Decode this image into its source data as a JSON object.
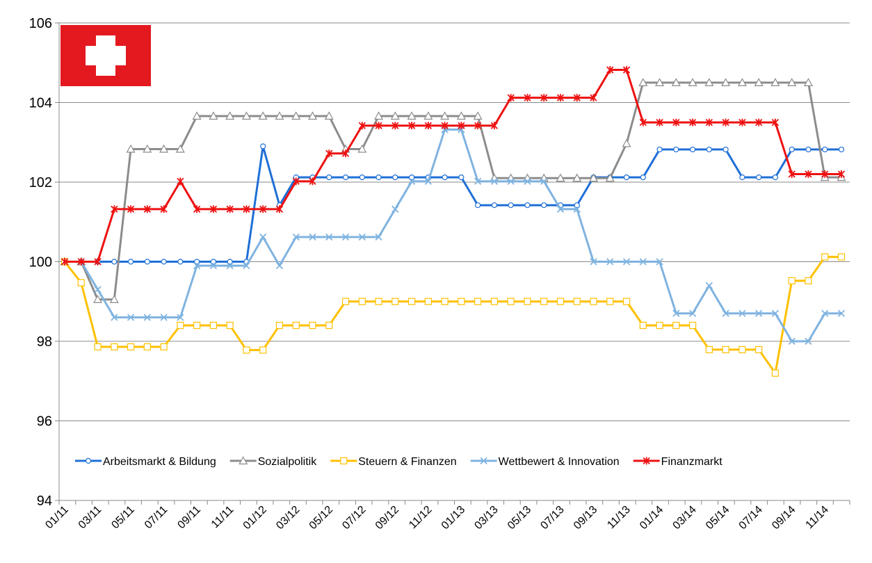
{
  "chart_data": {
    "type": "line",
    "categories": [
      "01/11",
      null,
      "03/11",
      null,
      "05/11",
      null,
      "07/11",
      null,
      "09/11",
      null,
      "11/11",
      null,
      "01/12",
      null,
      "03/12",
      null,
      "05/12",
      null,
      "07/12",
      null,
      "09/12",
      null,
      "11/12",
      null,
      "01/13",
      null,
      "03/13",
      null,
      "05/13",
      null,
      "07/13",
      null,
      "09/13",
      null,
      "11/13",
      null,
      "01/14",
      null,
      "03/14",
      null,
      "05/14",
      null,
      "07/14",
      null,
      "09/14",
      null,
      "11/14",
      null
    ],
    "series": [
      {
        "name": "Arbeitsmarkt & Bildung",
        "color": "#1f6fd6",
        "marker": "circle",
        "values": [
          100,
          100,
          100,
          100,
          100,
          100,
          100,
          100,
          100,
          100,
          100,
          100,
          102.9,
          101.42,
          102.12,
          102.12,
          102.12,
          102.12,
          102.12,
          102.12,
          102.12,
          102.12,
          102.12,
          102.12,
          102.12,
          101.42,
          101.42,
          101.42,
          101.42,
          101.42,
          101.42,
          101.42,
          102.12,
          102.12,
          102.12,
          102.12,
          102.82,
          102.82,
          102.82,
          102.82,
          102.82,
          102.12,
          102.12,
          102.12,
          102.82,
          102.82,
          102.82,
          102.82
        ]
      },
      {
        "name": "Sozialpolitik",
        "color": "#8c8c8c",
        "marker": "triangle",
        "values": [
          100,
          100,
          99.05,
          99.05,
          102.83,
          102.83,
          102.83,
          102.83,
          103.66,
          103.66,
          103.66,
          103.66,
          103.66,
          103.66,
          103.66,
          103.66,
          103.66,
          102.83,
          102.83,
          103.66,
          103.66,
          103.66,
          103.66,
          103.66,
          103.66,
          103.66,
          102.1,
          102.1,
          102.1,
          102.1,
          102.1,
          102.1,
          102.1,
          102.1,
          102.97,
          104.5,
          104.5,
          104.5,
          104.5,
          104.5,
          104.5,
          104.5,
          104.5,
          104.5,
          104.5,
          104.5,
          102.12,
          102.12
        ]
      },
      {
        "name": "Steuern & Finanzen",
        "color": "#ffc000",
        "marker": "square",
        "values": [
          100,
          99.47,
          97.86,
          97.86,
          97.86,
          97.86,
          97.86,
          98.4,
          98.4,
          98.4,
          98.4,
          97.78,
          97.78,
          98.4,
          98.4,
          98.4,
          98.4,
          99,
          99,
          99,
          99,
          99,
          99,
          99,
          99,
          99,
          99,
          99,
          99,
          99,
          99,
          99,
          99,
          99,
          99,
          98.4,
          98.4,
          98.4,
          98.4,
          97.79,
          97.79,
          97.79,
          97.79,
          97.2,
          99.52,
          99.52,
          100.12,
          100.12
        ]
      },
      {
        "name": "Wettbewert & Innovation",
        "color": "#7fb3e0",
        "marker": "x",
        "values": [
          100,
          100,
          99.3,
          98.6,
          98.6,
          98.6,
          98.6,
          98.6,
          99.9,
          99.9,
          99.9,
          99.9,
          100.62,
          99.9,
          100.62,
          100.62,
          100.62,
          100.62,
          100.62,
          100.62,
          101.32,
          102.02,
          102.02,
          103.32,
          103.32,
          102.02,
          102.02,
          102.02,
          102.02,
          102.02,
          101.32,
          101.32,
          100,
          100,
          100,
          100,
          100,
          98.7,
          98.7,
          99.4,
          98.7,
          98.7,
          98.7,
          98.7,
          98,
          98,
          98.7,
          98.7
        ]
      },
      {
        "name": "Finanzmarkt",
        "color": "#ee1111",
        "marker": "star",
        "values": [
          100,
          100,
          100,
          101.32,
          101.32,
          101.32,
          101.32,
          102.02,
          101.32,
          101.32,
          101.32,
          101.32,
          101.32,
          101.32,
          102.02,
          102.02,
          102.72,
          102.72,
          103.42,
          103.42,
          103.42,
          103.42,
          103.42,
          103.42,
          103.42,
          103.42,
          103.42,
          104.12,
          104.12,
          104.12,
          104.12,
          104.12,
          104.12,
          104.82,
          104.82,
          103.5,
          103.5,
          103.5,
          103.5,
          103.5,
          103.5,
          103.5,
          103.5,
          103.5,
          102.2,
          102.2,
          102.2,
          102.2
        ]
      }
    ],
    "ylim": [
      94,
      106
    ],
    "yticks": [
      94,
      96,
      98,
      100,
      102,
      104,
      106
    ],
    "grid": true,
    "legend": "bottom"
  }
}
